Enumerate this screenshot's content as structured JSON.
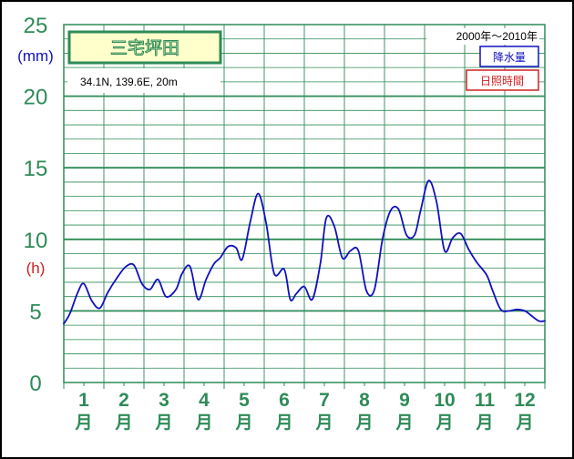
{
  "chart_data": {
    "type": "line",
    "title": "三宅坪田",
    "coords": "34.1N,  139.6E,  20m",
    "period": "2000年〜2010年",
    "y_axis": {
      "ticks": [
        "0",
        "5",
        "10",
        "15",
        "20",
        "25"
      ],
      "ylim": [
        0,
        25
      ],
      "unit_precip": "(mm)",
      "unit_sun": "(h)"
    },
    "x_axis": {
      "months": [
        "1",
        "2",
        "3",
        "4",
        "5",
        "6",
        "7",
        "8",
        "9",
        "10",
        "11",
        "12"
      ],
      "suffix": "月"
    },
    "legend": [
      {
        "label": "降水量",
        "color": "#1010c0"
      },
      {
        "label": "日照時間",
        "color": "#d02020"
      }
    ],
    "series": [
      {
        "name": "降水量",
        "color": "#1010c0",
        "x": [
          0,
          0.3,
          0.7,
          1.0,
          1.4,
          1.8,
          2.2,
          2.7,
          3.1,
          3.5,
          3.9,
          4.3,
          4.7,
          5.1,
          5.6,
          5.9,
          6.3,
          6.7,
          7.1,
          7.5,
          7.8,
          8.2,
          8.6,
          8.9,
          9.3,
          9.7,
          10.1,
          10.5,
          11.0,
          11.3,
          11.6,
          12.0,
          12.4,
          12.8,
          13.1,
          13.5,
          13.9,
          14.3,
          14.7,
          15.1,
          15.5,
          15.9,
          16.3,
          16.7,
          17.1,
          17.5,
          17.8,
          18.2,
          18.6,
          19.0,
          19.4,
          19.8,
          20.2,
          20.6,
          21.1,
          21.4,
          21.8,
          22.2,
          22.6,
          23.0,
          23.3,
          23.7,
          24.0
        ],
        "y": [
          4.1,
          4.8,
          6.3,
          6.9,
          5.7,
          5.2,
          6.3,
          7.4,
          8.1,
          8.2,
          6.9,
          6.5,
          7.2,
          6.0,
          6.5,
          7.6,
          8.1,
          5.8,
          7.2,
          8.3,
          8.7,
          9.5,
          9.4,
          8.6,
          11.2,
          13.2,
          11.1,
          7.6,
          7.9,
          5.8,
          6.2,
          6.7,
          5.8,
          8.3,
          11.5,
          10.9,
          8.7,
          9.2,
          9.2,
          6.4,
          6.5,
          10.0,
          12.0,
          12.1,
          10.3,
          10.3,
          12.0,
          14.1,
          12.6,
          9.2,
          10.1,
          10.4,
          9.3,
          8.4,
          7.5,
          6.4,
          5.1,
          5.0,
          5.1,
          5.0,
          4.7,
          4.3,
          4.3
        ]
      }
    ]
  }
}
